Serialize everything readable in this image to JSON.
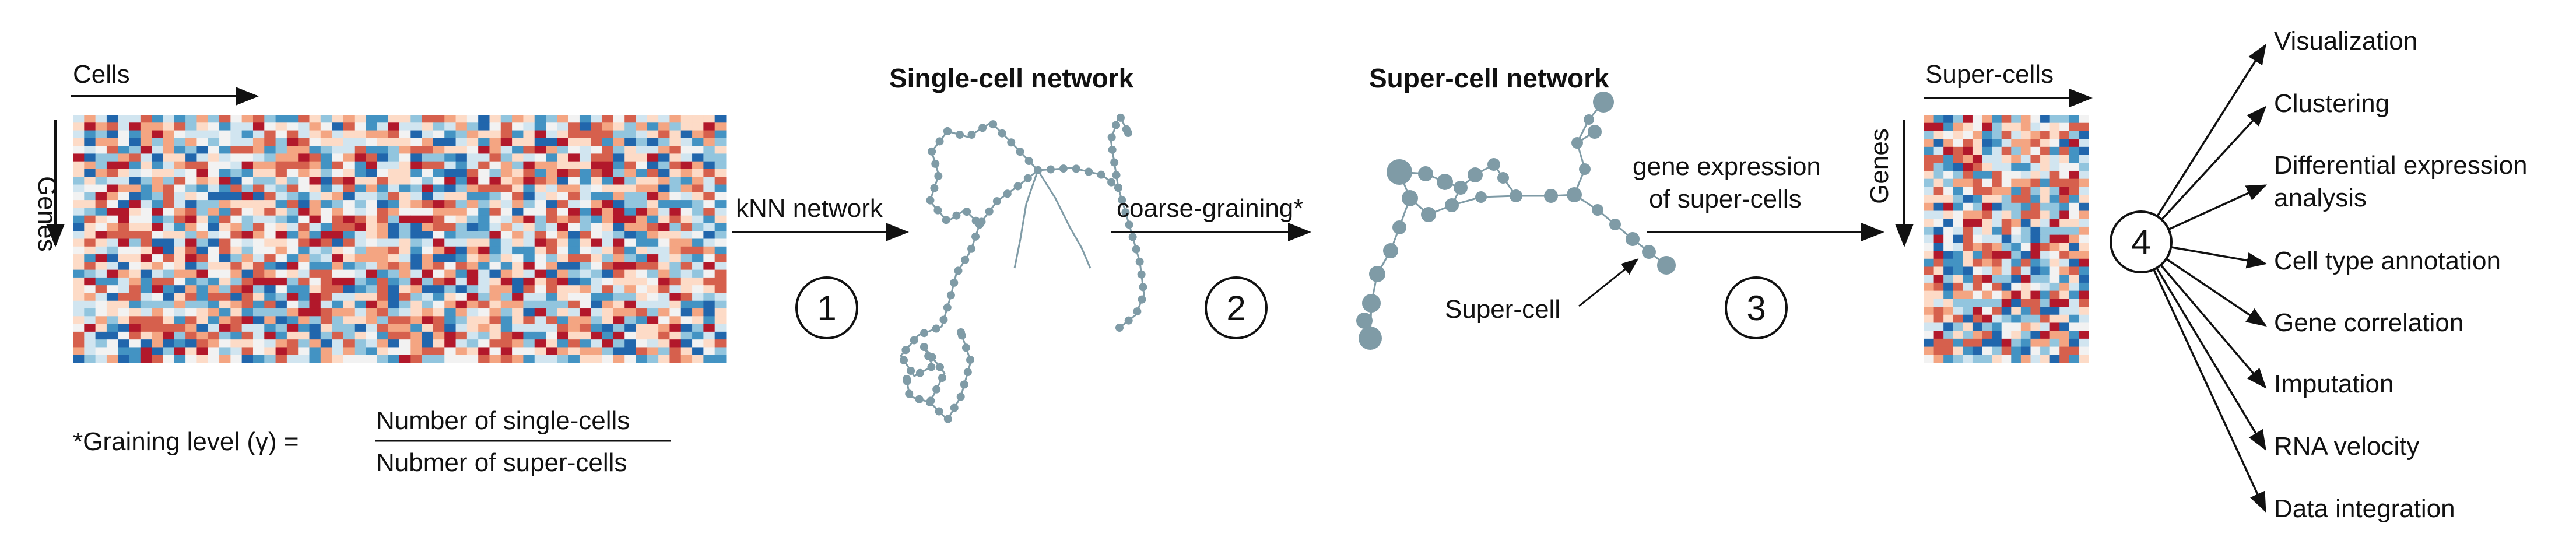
{
  "matrix": {
    "cells_label": "Cells",
    "genes_label": "Genes",
    "colors": [
      "#b2182b",
      "#d6604d",
      "#f4a582",
      "#fddbc7",
      "#f2f2f2",
      "#d1e5f0",
      "#92c5de",
      "#4393c3",
      "#2166ac"
    ]
  },
  "graining": {
    "prefix": "*Graining level (γ) =",
    "numerator": "Number of single-cells",
    "denominator": "Nubmer of super-cells"
  },
  "steps": [
    {
      "number": "1",
      "label": "kNN network"
    },
    {
      "number": "2",
      "label": "coarse-graining*"
    },
    {
      "number": "3",
      "label_line1": "gene expression",
      "label_line2": "of super-cells"
    },
    {
      "number": "4"
    }
  ],
  "networks": {
    "single_title": "Single-cell network",
    "super_title": "Super-cell network",
    "super_cell_label": "Super-cell",
    "node_color": "#7f9ba6"
  },
  "super_matrix": {
    "super_cells_label": "Super-cells",
    "genes_label": "Genes"
  },
  "applications": [
    {
      "label": "Visualization"
    },
    {
      "label": "Clustering"
    },
    {
      "label_line1": "Differential expression",
      "label_line2": "analysis"
    },
    {
      "label": "Cell type annotation"
    },
    {
      "label": "Gene correlation"
    },
    {
      "label": "Imputation"
    },
    {
      "label": "RNA velocity"
    },
    {
      "label": "Data integration"
    }
  ]
}
